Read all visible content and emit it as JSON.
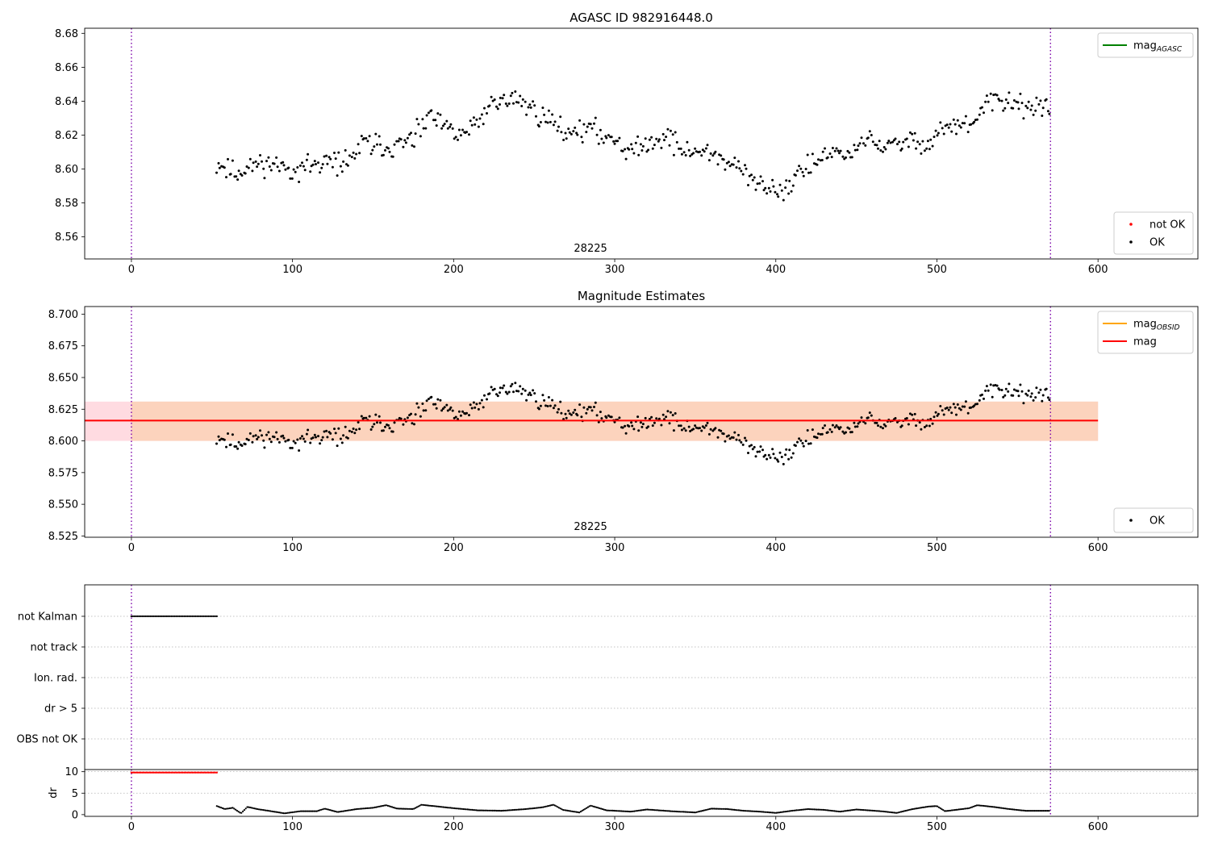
{
  "chart_data": [
    {
      "id": "top",
      "type": "scatter",
      "title": "AGASC ID 982916448.0",
      "xlim": [
        -29,
        662
      ],
      "ylim": [
        8.547,
        8.683
      ],
      "xticks": [
        0,
        100,
        200,
        300,
        400,
        500,
        600
      ],
      "xtick_labels": [
        "0",
        "100",
        "200",
        "300",
        "400",
        "500",
        "600"
      ],
      "yticks": [
        8.56,
        8.58,
        8.6,
        8.62,
        8.64,
        8.66,
        8.68
      ],
      "ytick_labels": [
        "8.56",
        "8.58",
        "8.60",
        "8.62",
        "8.64",
        "8.66",
        "8.68"
      ],
      "vlines": [
        0,
        570.5
      ],
      "obsid_label": "28225",
      "obsid_label_x": 285,
      "legends": [
        {
          "position": "top-right",
          "entries": [
            {
              "kind": "line",
              "color": "#008000",
              "label": "mag",
              "sub": "AGASC"
            }
          ]
        },
        {
          "position": "bottom-right",
          "entries": [
            {
              "kind": "dot",
              "color": "#ff0000",
              "label": "not OK"
            },
            {
              "kind": "dot",
              "color": "#000000",
              "label": "OK"
            }
          ]
        }
      ],
      "series": [
        {
          "name": "OK",
          "color": "#000000",
          "x_range": [
            53,
            570
          ],
          "n": 520,
          "seed": 11,
          "trend": [
            [
              53,
              8.603
            ],
            [
              65,
              8.597
            ],
            [
              80,
              8.604
            ],
            [
              100,
              8.6
            ],
            [
              120,
              8.603
            ],
            [
              135,
              8.605
            ],
            [
              145,
              8.616
            ],
            [
              160,
              8.612
            ],
            [
              175,
              8.617
            ],
            [
              185,
              8.631
            ],
            [
              200,
              8.621
            ],
            [
              210,
              8.622
            ],
            [
              225,
              8.64
            ],
            [
              240,
              8.641
            ],
            [
              255,
              8.631
            ],
            [
              270,
              8.623
            ],
            [
              285,
              8.623
            ],
            [
              300,
              8.618
            ],
            [
              310,
              8.611
            ],
            [
              320,
              8.614
            ],
            [
              330,
              8.62
            ],
            [
              345,
              8.61
            ],
            [
              360,
              8.61
            ],
            [
              375,
              8.601
            ],
            [
              390,
              8.59
            ],
            [
              405,
              8.588
            ],
            [
              415,
              8.598
            ],
            [
              430,
              8.608
            ],
            [
              445,
              8.608
            ],
            [
              455,
              8.618
            ],
            [
              470,
              8.612
            ],
            [
              485,
              8.618
            ],
            [
              495,
              8.615
            ],
            [
              505,
              8.625
            ],
            [
              520,
              8.625
            ],
            [
              535,
              8.641
            ],
            [
              550,
              8.638
            ],
            [
              570,
              8.636
            ]
          ],
          "noise": 0.0065
        }
      ]
    },
    {
      "id": "middle",
      "type": "scatter",
      "title": "Magnitude Estimates",
      "xlim": [
        -29,
        662
      ],
      "ylim": [
        8.524,
        8.706
      ],
      "xticks": [
        0,
        100,
        200,
        300,
        400,
        500,
        600
      ],
      "xtick_labels": [
        "0",
        "100",
        "200",
        "300",
        "400",
        "500",
        "600"
      ],
      "yticks": [
        8.525,
        8.55,
        8.575,
        8.6,
        8.625,
        8.65,
        8.675,
        8.7
      ],
      "ytick_labels": [
        "8.525",
        "8.550",
        "8.575",
        "8.600",
        "8.625",
        "8.650",
        "8.675",
        "8.700"
      ],
      "vlines": [
        0,
        570.5
      ],
      "obsid_label": "28225",
      "obsid_label_x": 285,
      "bands": [
        {
          "x": [
            -29,
            600
          ],
          "y": [
            8.6,
            8.631
          ],
          "color": "#ffdbe1"
        },
        {
          "x": [
            0,
            600
          ],
          "y": [
            8.6,
            8.631
          ],
          "color": "#fcd3bd"
        }
      ],
      "lines": [
        {
          "name": "mag",
          "color": "#ff0000",
          "x": [
            -29,
            600
          ],
          "y": 8.616
        }
      ],
      "legends": [
        {
          "position": "top-right",
          "entries": [
            {
              "kind": "line",
              "color": "#ffa500",
              "label": "mag",
              "sub": "OBSID"
            },
            {
              "kind": "line",
              "color": "#ff0000",
              "label": "mag"
            }
          ]
        },
        {
          "position": "bottom-right",
          "entries": [
            {
              "kind": "dot",
              "color": "#000000",
              "label": "OK"
            }
          ]
        }
      ],
      "series": [
        {
          "name": "OK",
          "color": "#000000",
          "x_range": [
            53,
            570
          ],
          "n": 520,
          "seed": 11,
          "trend": [
            [
              53,
              8.603
            ],
            [
              65,
              8.597
            ],
            [
              80,
              8.604
            ],
            [
              100,
              8.6
            ],
            [
              120,
              8.603
            ],
            [
              135,
              8.605
            ],
            [
              145,
              8.616
            ],
            [
              160,
              8.612
            ],
            [
              175,
              8.617
            ],
            [
              185,
              8.631
            ],
            [
              200,
              8.621
            ],
            [
              210,
              8.622
            ],
            [
              225,
              8.64
            ],
            [
              240,
              8.641
            ],
            [
              255,
              8.631
            ],
            [
              270,
              8.623
            ],
            [
              285,
              8.623
            ],
            [
              300,
              8.618
            ],
            [
              310,
              8.611
            ],
            [
              320,
              8.614
            ],
            [
              330,
              8.62
            ],
            [
              345,
              8.61
            ],
            [
              360,
              8.61
            ],
            [
              375,
              8.601
            ],
            [
              390,
              8.59
            ],
            [
              405,
              8.588
            ],
            [
              415,
              8.598
            ],
            [
              430,
              8.608
            ],
            [
              445,
              8.608
            ],
            [
              455,
              8.618
            ],
            [
              470,
              8.612
            ],
            [
              485,
              8.618
            ],
            [
              495,
              8.615
            ],
            [
              505,
              8.625
            ],
            [
              520,
              8.625
            ],
            [
              535,
              8.641
            ],
            [
              550,
              8.638
            ],
            [
              570,
              8.636
            ]
          ],
          "noise": 0.0065
        }
      ]
    },
    {
      "id": "flags",
      "type": "scatter",
      "xlim": [
        -29,
        662
      ],
      "categories": [
        "not Kalman",
        "not track",
        "Ion. rad.",
        "dr > 5",
        "OBS not OK"
      ],
      "vlines": [
        0,
        570.5
      ],
      "flag_segments": [
        {
          "category": "not Kalman",
          "x_range": [
            0,
            53
          ],
          "color": "#000000"
        }
      ]
    },
    {
      "id": "dr",
      "type": "scatter",
      "ylabel": "dr",
      "xlim": [
        -29,
        662
      ],
      "ylim": [
        -0.4,
        10.5
      ],
      "xticks": [
        0,
        100,
        200,
        300,
        400,
        500,
        600
      ],
      "xtick_labels": [
        "0",
        "100",
        "200",
        "300",
        "400",
        "500",
        "600"
      ],
      "yticks": [
        0,
        5,
        10
      ],
      "ytick_labels": [
        "0",
        "5",
        "10"
      ],
      "hlines": [
        5,
        10
      ],
      "vlines": [
        0,
        570.5
      ],
      "series": [
        {
          "name": "dr > 10",
          "color": "#ff0000",
          "x_range": [
            0,
            53
          ],
          "y": 9.8
        },
        {
          "name": "dr",
          "color": "#000000",
          "x_range": [
            53,
            570
          ],
          "profile": [
            [
              53,
              2.0
            ],
            [
              58,
              1.3
            ],
            [
              63,
              1.6
            ],
            [
              68,
              0.3
            ],
            [
              72,
              1.8
            ],
            [
              78,
              1.3
            ],
            [
              85,
              0.9
            ],
            [
              95,
              0.3
            ],
            [
              105,
              0.8
            ],
            [
              115,
              0.8
            ],
            [
              120,
              1.4
            ],
            [
              128,
              0.6
            ],
            [
              140,
              1.3
            ],
            [
              150,
              1.6
            ],
            [
              158,
              2.2
            ],
            [
              165,
              1.4
            ],
            [
              175,
              1.3
            ],
            [
              180,
              2.3
            ],
            [
              190,
              1.9
            ],
            [
              200,
              1.5
            ],
            [
              215,
              1.0
            ],
            [
              230,
              0.9
            ],
            [
              245,
              1.3
            ],
            [
              255,
              1.7
            ],
            [
              262,
              2.3
            ],
            [
              268,
              1.1
            ],
            [
              278,
              0.5
            ],
            [
              285,
              2.1
            ],
            [
              295,
              1.0
            ],
            [
              310,
              0.7
            ],
            [
              320,
              1.2
            ],
            [
              335,
              0.8
            ],
            [
              350,
              0.5
            ],
            [
              360,
              1.4
            ],
            [
              370,
              1.3
            ],
            [
              380,
              0.9
            ],
            [
              390,
              0.7
            ],
            [
              400,
              0.4
            ],
            [
              410,
              0.9
            ],
            [
              420,
              1.3
            ],
            [
              430,
              1.1
            ],
            [
              440,
              0.7
            ],
            [
              450,
              1.2
            ],
            [
              465,
              0.8
            ],
            [
              475,
              0.4
            ],
            [
              485,
              1.3
            ],
            [
              495,
              1.9
            ],
            [
              500,
              2.0
            ],
            [
              505,
              0.8
            ],
            [
              520,
              1.5
            ],
            [
              525,
              2.2
            ],
            [
              535,
              1.8
            ],
            [
              545,
              1.3
            ],
            [
              555,
              0.9
            ],
            [
              562,
              0.9
            ],
            [
              570,
              0.9
            ]
          ]
        }
      ]
    }
  ]
}
